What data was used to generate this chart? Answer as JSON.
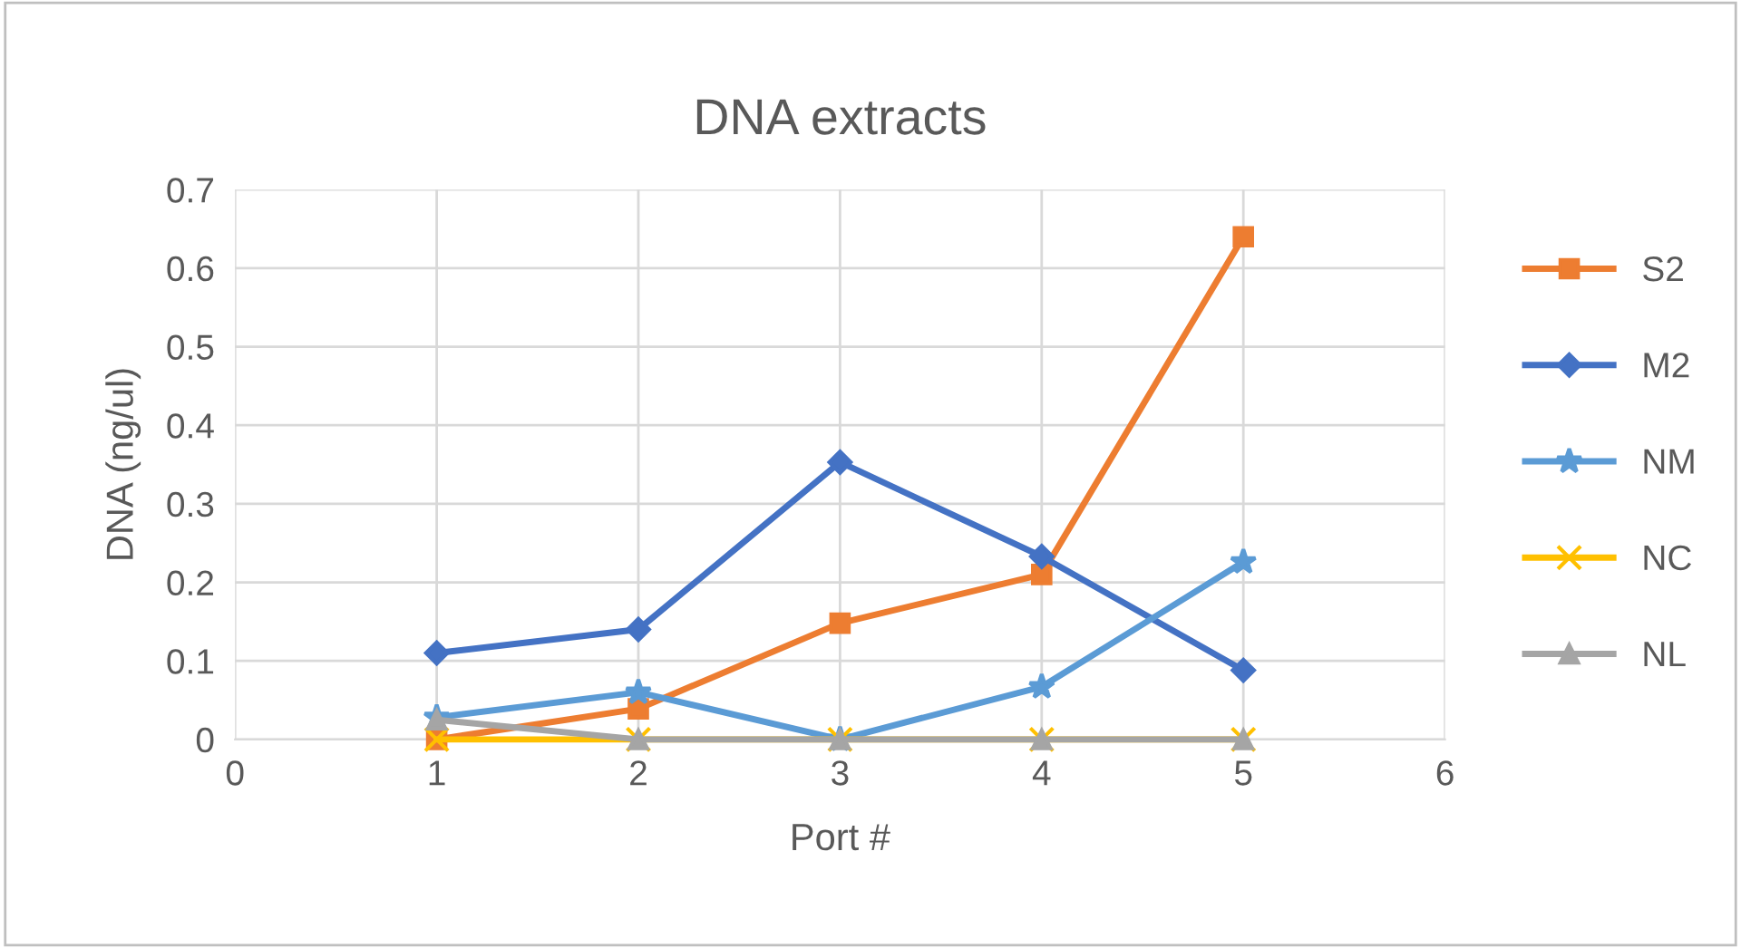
{
  "chart_data": {
    "type": "line",
    "title": "DNA extracts",
    "xlabel": "Port #",
    "ylabel": "DNA (ng/ul)",
    "x": [
      1,
      2,
      3,
      4,
      5
    ],
    "xlim": [
      0,
      6
    ],
    "xticks": [
      0,
      1,
      2,
      3,
      4,
      5,
      6
    ],
    "ylim": [
      0,
      0.7
    ],
    "yticks": [
      0,
      0.1,
      0.2,
      0.3,
      0.4,
      0.5,
      0.6,
      0.7
    ],
    "grid": true,
    "legend": "right",
    "series": [
      {
        "name": "S2",
        "color": "#ed7d31",
        "marker": "square",
        "values": [
          0,
          0.039,
          0.148,
          0.21,
          0.64
        ]
      },
      {
        "name": "M2",
        "color": "#4472c4",
        "marker": "diamond",
        "values": [
          0.11,
          0.14,
          0.353,
          0.233,
          0.088
        ]
      },
      {
        "name": "NM",
        "color": "#5b9bd5",
        "marker": "star",
        "values": [
          0.028,
          0.06,
          0,
          0.067,
          0.226
        ]
      },
      {
        "name": "NC",
        "color": "#ffc000",
        "marker": "cross",
        "values": [
          0,
          0,
          0,
          0,
          0
        ]
      },
      {
        "name": "NL",
        "color": "#a5a5a5",
        "marker": "triangle",
        "values": [
          0.025,
          0,
          0,
          0,
          0
        ]
      }
    ]
  }
}
